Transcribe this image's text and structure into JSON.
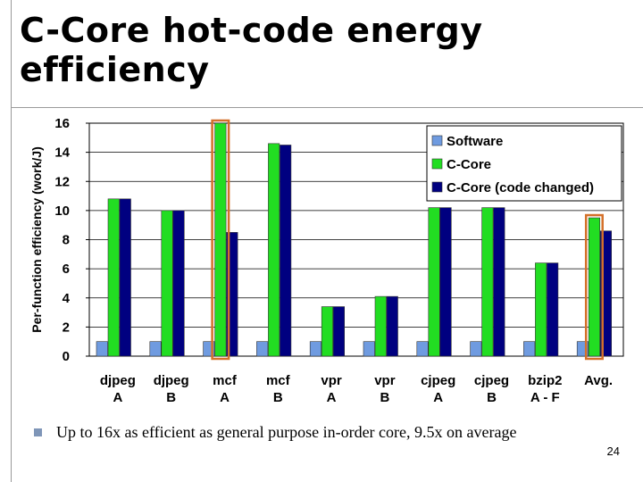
{
  "slide": {
    "title_line1": "C-Core hot-code energy",
    "title_line2": "efficiency",
    "bullet": "Up to 16x as efficient as general purpose in-order core, 9.5x on average",
    "page_number": "24"
  },
  "chart_data": {
    "type": "bar",
    "ylabel": "Per-function efficiency (work/J)",
    "ylim": [
      0,
      16
    ],
    "yticks": [
      0,
      2,
      4,
      6,
      8,
      10,
      12,
      14,
      16
    ],
    "grid": true,
    "legend_position": "top-right",
    "categories": [
      [
        "djpeg",
        "A"
      ],
      [
        "djpeg",
        "B"
      ],
      [
        "mcf",
        "A"
      ],
      [
        "mcf",
        "B"
      ],
      [
        "vpr",
        "A"
      ],
      [
        "vpr",
        "B"
      ],
      [
        "cjpeg",
        "A"
      ],
      [
        "cjpeg",
        "B"
      ],
      [
        "bzip2",
        "A - F"
      ],
      [
        "Avg.",
        ""
      ]
    ],
    "series": [
      {
        "name": "Software",
        "color": "#6f9be0",
        "values": [
          1,
          1,
          1,
          1,
          1,
          1,
          1,
          1,
          1,
          1
        ]
      },
      {
        "name": "C-Core",
        "color": "#22dd22",
        "values": [
          10.8,
          10.0,
          16.0,
          14.6,
          3.4,
          4.1,
          10.2,
          10.2,
          6.4,
          9.5
        ]
      },
      {
        "name": "C-Core (code changed)",
        "color": "#000080",
        "values": [
          10.8,
          10.0,
          8.5,
          14.5,
          3.4,
          4.1,
          10.2,
          10.2,
          6.4,
          8.6
        ]
      }
    ],
    "highlight_categories": [
      2,
      9
    ],
    "highlight_color": "#d4702a"
  }
}
